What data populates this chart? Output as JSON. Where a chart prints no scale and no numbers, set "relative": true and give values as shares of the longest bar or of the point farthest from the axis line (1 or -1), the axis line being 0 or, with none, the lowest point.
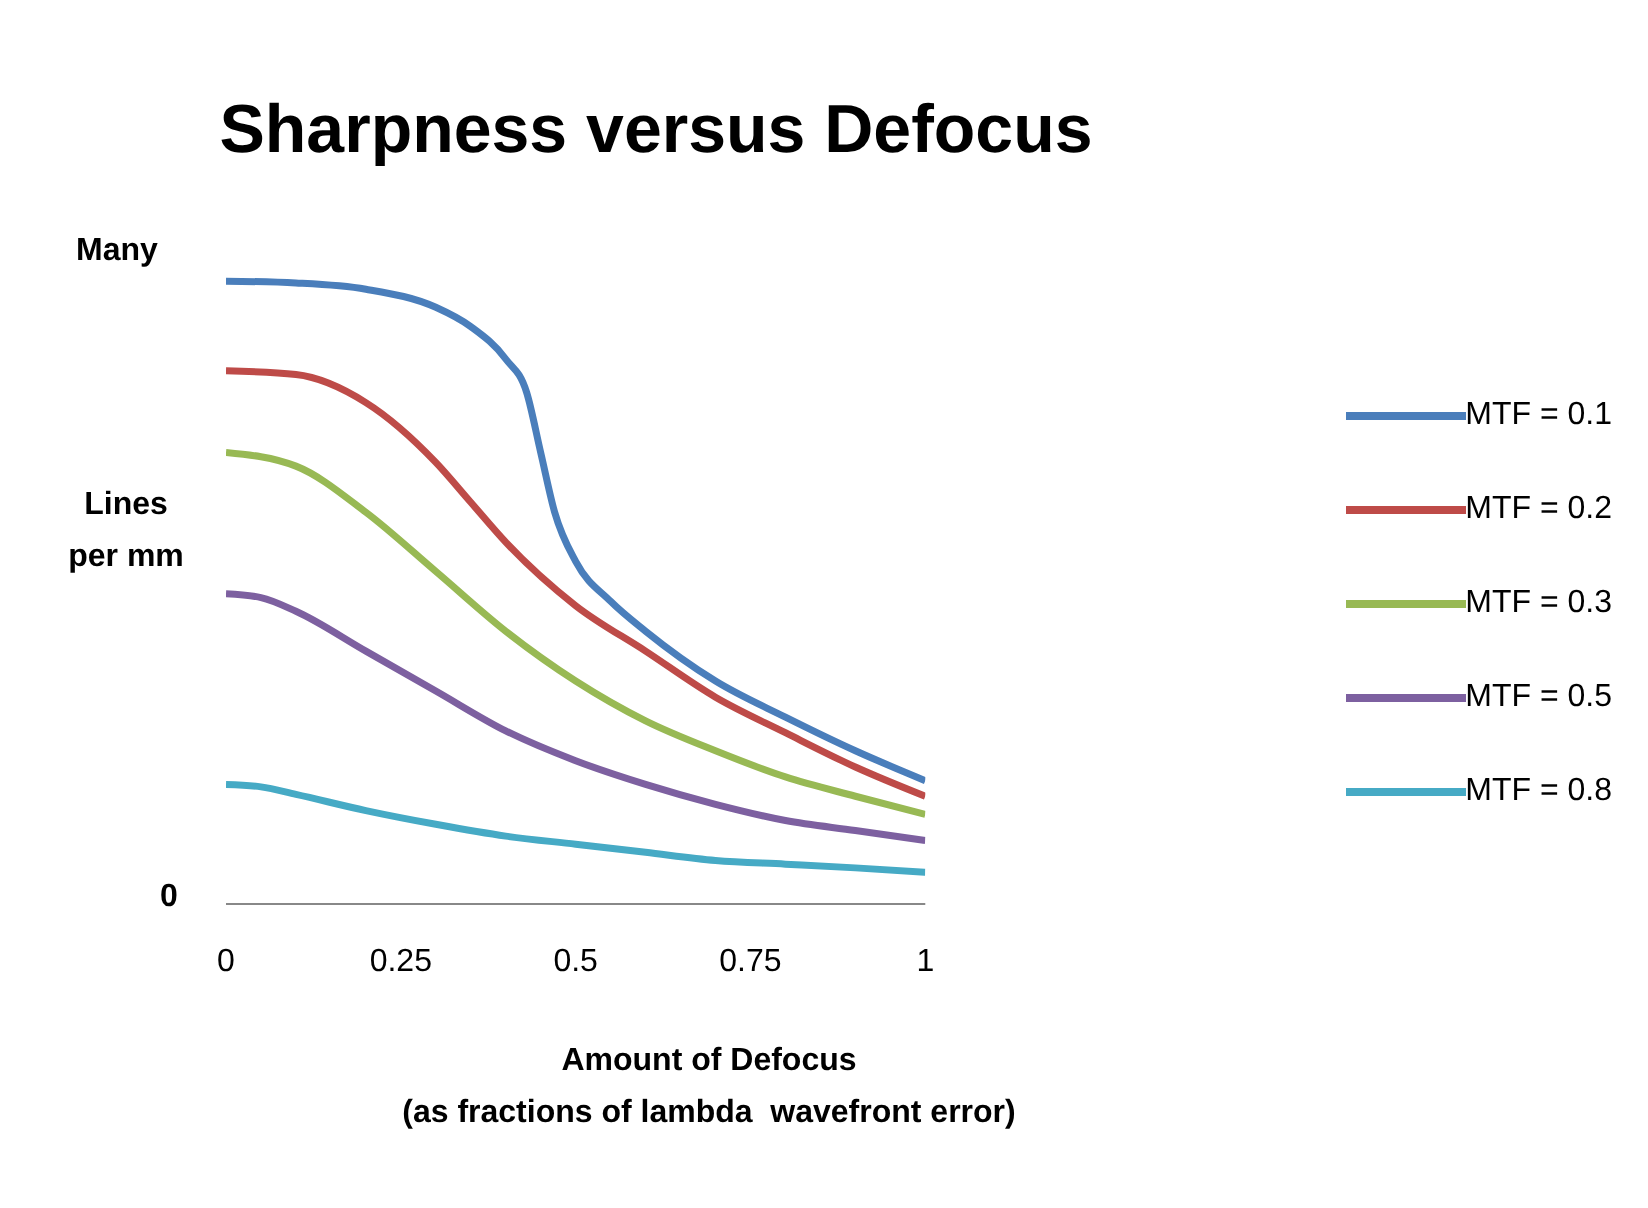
{
  "chart_data": {
    "type": "line",
    "title": "Sharpness versus Defocus",
    "xlabel": "Amount of Defocus\n(as fractions of lambda  wavefront error)",
    "ylabel": "Lines per mm",
    "annotations": [
      "Many",
      "0"
    ],
    "relative": true,
    "xlim": [
      0,
      1
    ],
    "xticks": [
      0,
      0.25,
      0.5,
      0.75,
      1
    ],
    "grid": false,
    "legend": "right",
    "marker": "none",
    "line_style": "solid",
    "series": [
      {
        "name": "MTF = 0.1",
        "color": "#4a7ebb",
        "x": [
          0,
          0.1,
          0.2,
          0.3,
          0.35,
          0.4,
          0.43,
          0.45,
          0.47,
          0.5,
          0.55,
          0.6,
          0.7,
          0.8,
          0.9,
          1
        ],
        "values": [
          1,
          0.997,
          0.987,
          0.958,
          0.927,
          0.875,
          0.821,
          0.725,
          0.629,
          0.55,
          0.486,
          0.438,
          0.358,
          0.3,
          0.246,
          0.198
        ]
      },
      {
        "name": "MTF = 0.2",
        "color": "#be4b48",
        "x": [
          0,
          0.1,
          0.2,
          0.3,
          0.35,
          0.4,
          0.5,
          0.6,
          0.7,
          0.8,
          0.9,
          1
        ],
        "values": [
          0.856,
          0.85,
          0.805,
          0.709,
          0.645,
          0.581,
          0.479,
          0.406,
          0.332,
          0.275,
          0.22,
          0.173
        ]
      },
      {
        "name": "MTF = 0.3",
        "color": "#98b954",
        "x": [
          0,
          0.1,
          0.2,
          0.3,
          0.4,
          0.5,
          0.6,
          0.7,
          0.8,
          0.9,
          1
        ],
        "values": [
          0.725,
          0.703,
          0.629,
          0.534,
          0.438,
          0.358,
          0.294,
          0.246,
          0.204,
          0.173,
          0.144
        ]
      },
      {
        "name": "MTF = 0.5",
        "color": "#7d60a0",
        "x": [
          0,
          0.05,
          0.1,
          0.2,
          0.3,
          0.4,
          0.5,
          0.6,
          0.7,
          0.8,
          0.9,
          1
        ],
        "values": [
          0.498,
          0.492,
          0.47,
          0.406,
          0.342,
          0.278,
          0.23,
          0.192,
          0.16,
          0.134,
          0.118,
          0.102
        ]
      },
      {
        "name": "MTF = 0.8",
        "color": "#46aac5",
        "x": [
          0,
          0.05,
          0.1,
          0.2,
          0.3,
          0.4,
          0.5,
          0.6,
          0.7,
          0.8,
          0.9,
          1
        ],
        "values": [
          0.192,
          0.188,
          0.176,
          0.15,
          0.128,
          0.109,
          0.096,
          0.083,
          0.07,
          0.064,
          0.058,
          0.051
        ]
      }
    ]
  }
}
